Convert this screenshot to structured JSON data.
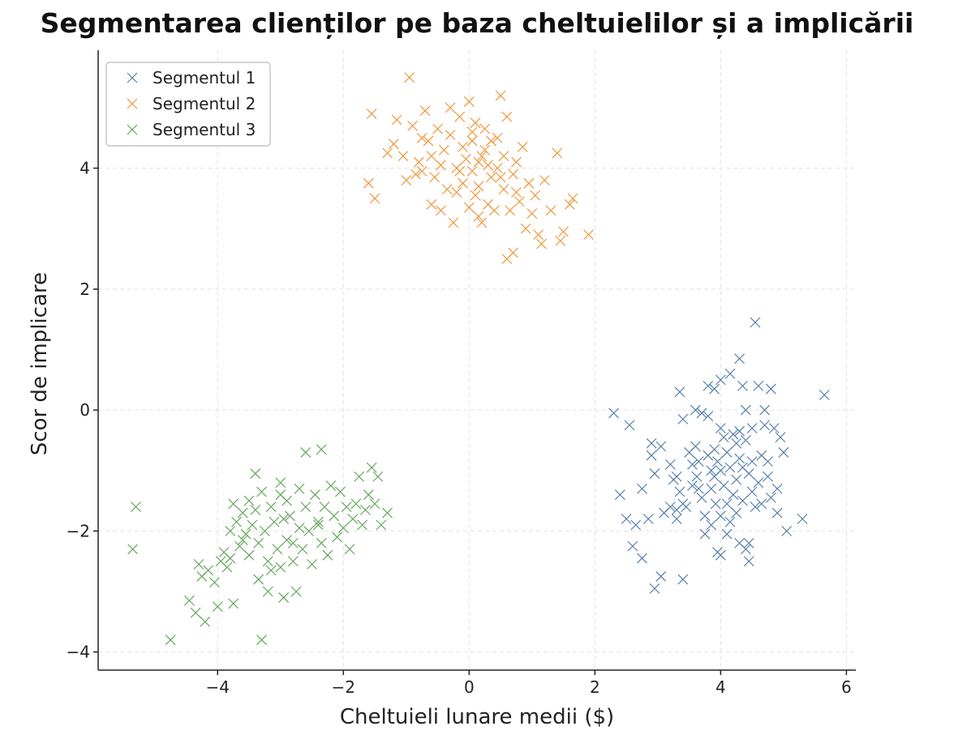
{
  "chart_data": {
    "type": "scatter",
    "title": "Segmentarea clienților pe baza cheltuielilor și a implicării",
    "xlabel": "Cheltuieli lunare medii ($)",
    "ylabel": "Scor de implicare",
    "xlim": [
      -5.9,
      6.15
    ],
    "ylim": [
      -4.3,
      5.95
    ],
    "xticks": [
      -4,
      -2,
      0,
      2,
      4,
      6
    ],
    "yticks": [
      -4,
      -2,
      0,
      2,
      4
    ],
    "xtick_labels": [
      "−4",
      "−2",
      "0",
      "2",
      "4",
      "6"
    ],
    "ytick_labels": [
      "−4",
      "−2",
      "0",
      "2",
      "4"
    ],
    "grid": true,
    "legend_position": "top-left",
    "marker": "x",
    "series": [
      {
        "name": "Segmentul 1",
        "color": "#4c78a8",
        "points": [
          [
            2.3,
            -0.05
          ],
          [
            2.55,
            -0.25
          ],
          [
            2.4,
            -1.4
          ],
          [
            2.5,
            -1.8
          ],
          [
            2.65,
            -1.9
          ],
          [
            2.6,
            -2.25
          ],
          [
            2.75,
            -2.45
          ],
          [
            2.75,
            -1.3
          ],
          [
            2.85,
            -1.8
          ],
          [
            2.9,
            -0.55
          ],
          [
            2.9,
            -0.75
          ],
          [
            2.95,
            -1.05
          ],
          [
            2.95,
            -2.95
          ],
          [
            3.05,
            -2.75
          ],
          [
            3.05,
            -0.6
          ],
          [
            3.1,
            -1.7
          ],
          [
            3.2,
            -0.9
          ],
          [
            3.2,
            -1.6
          ],
          [
            3.25,
            -1.15
          ],
          [
            3.3,
            -1.8
          ],
          [
            3.3,
            -1.65
          ],
          [
            3.3,
            -1.1
          ],
          [
            3.35,
            0.3
          ],
          [
            3.35,
            -1.35
          ],
          [
            3.4,
            -0.15
          ],
          [
            3.4,
            -1.55
          ],
          [
            3.4,
            -2.8
          ],
          [
            3.45,
            -1.6
          ],
          [
            3.5,
            -0.7
          ],
          [
            3.55,
            -0.9
          ],
          [
            3.55,
            -1.25
          ],
          [
            3.6,
            -0.0
          ],
          [
            3.6,
            -0.6
          ],
          [
            3.62,
            -1.1
          ],
          [
            3.65,
            -1.3
          ],
          [
            3.65,
            -0.85
          ],
          [
            3.7,
            -0.05
          ],
          [
            3.7,
            -1.45
          ],
          [
            3.75,
            -1.75
          ],
          [
            3.75,
            -2.05
          ],
          [
            3.8,
            -0.1
          ],
          [
            3.8,
            0.4
          ],
          [
            3.8,
            -0.75
          ],
          [
            3.85,
            -1.0
          ],
          [
            3.85,
            -1.9
          ],
          [
            3.85,
            -1.3
          ],
          [
            3.9,
            0.35
          ],
          [
            3.9,
            -0.65
          ],
          [
            3.9,
            -1.1
          ],
          [
            3.92,
            -1.55
          ],
          [
            3.95,
            -0.85
          ],
          [
            3.95,
            -2.35
          ],
          [
            4.0,
            0.5
          ],
          [
            4.0,
            -0.3
          ],
          [
            4.0,
            -1.0
          ],
          [
            4.0,
            -1.75
          ],
          [
            4.0,
            -2.4
          ],
          [
            4.05,
            -0.45
          ],
          [
            4.05,
            -1.25
          ],
          [
            4.1,
            -0.7
          ],
          [
            4.1,
            -1.55
          ],
          [
            4.1,
            -2.05
          ],
          [
            4.15,
            0.6
          ],
          [
            4.15,
            -0.95
          ],
          [
            4.15,
            -1.85
          ],
          [
            4.2,
            -0.4
          ],
          [
            4.2,
            -1.4
          ],
          [
            4.25,
            -0.55
          ],
          [
            4.25,
            -1.15
          ],
          [
            4.25,
            -1.7
          ],
          [
            4.3,
            0.85
          ],
          [
            4.3,
            -0.35
          ],
          [
            4.3,
            -0.8
          ],
          [
            4.3,
            -2.2
          ],
          [
            4.35,
            0.4
          ],
          [
            4.35,
            -0.95
          ],
          [
            4.35,
            -1.5
          ],
          [
            4.4,
            -0.0
          ],
          [
            4.4,
            -0.5
          ],
          [
            4.4,
            -2.3
          ],
          [
            4.45,
            -1.05
          ],
          [
            4.45,
            -2.2
          ],
          [
            4.45,
            -2.5
          ],
          [
            4.5,
            -0.3
          ],
          [
            4.5,
            -0.85
          ],
          [
            4.5,
            -1.35
          ],
          [
            4.55,
            1.45
          ],
          [
            4.55,
            -1.6
          ],
          [
            4.6,
            0.4
          ],
          [
            4.6,
            -1.2
          ],
          [
            4.65,
            -0.75
          ],
          [
            4.65,
            -1.55
          ],
          [
            4.7,
            0.0
          ],
          [
            4.7,
            -0.25
          ],
          [
            4.75,
            -0.85
          ],
          [
            4.75,
            -1.1
          ],
          [
            4.8,
            0.35
          ],
          [
            4.8,
            -1.45
          ],
          [
            4.85,
            -0.3
          ],
          [
            4.9,
            -1.3
          ],
          [
            4.9,
            -1.7
          ],
          [
            4.95,
            -0.45
          ],
          [
            5.0,
            -0.7
          ],
          [
            5.05,
            -2.0
          ],
          [
            5.3,
            -1.8
          ],
          [
            5.65,
            0.25
          ]
        ]
      },
      {
        "name": "Segmentul 2",
        "color": "#f28e2b",
        "points": [
          [
            -1.55,
            4.9
          ],
          [
            -1.6,
            3.75
          ],
          [
            -1.5,
            3.5
          ],
          [
            -1.3,
            4.25
          ],
          [
            -1.2,
            4.4
          ],
          [
            -1.15,
            4.8
          ],
          [
            -1.05,
            4.2
          ],
          [
            -1.0,
            3.8
          ],
          [
            -0.95,
            5.5
          ],
          [
            -0.9,
            4.7
          ],
          [
            -0.85,
            3.9
          ],
          [
            -0.8,
            4.1
          ],
          [
            -0.75,
            4.5
          ],
          [
            -0.7,
            4.95
          ],
          [
            -0.65,
            4.45
          ],
          [
            -0.6,
            4.2
          ],
          [
            -0.55,
            3.85
          ],
          [
            -0.5,
            4.65
          ],
          [
            -0.45,
            3.3
          ],
          [
            -0.45,
            4.05
          ],
          [
            -0.4,
            4.3
          ],
          [
            -0.35,
            3.65
          ],
          [
            -0.3,
            5.0
          ],
          [
            -0.3,
            4.55
          ],
          [
            -0.25,
            3.1
          ],
          [
            -0.2,
            4.0
          ],
          [
            -0.2,
            3.6
          ],
          [
            -0.15,
            4.85
          ],
          [
            -0.1,
            3.75
          ],
          [
            -0.1,
            4.35
          ],
          [
            -0.05,
            4.15
          ],
          [
            0.0,
            5.1
          ],
          [
            0.0,
            3.35
          ],
          [
            0.05,
            3.95
          ],
          [
            0.05,
            4.6
          ],
          [
            0.1,
            4.75
          ],
          [
            0.1,
            3.55
          ],
          [
            0.15,
            4.1
          ],
          [
            0.15,
            3.2
          ],
          [
            0.2,
            4.2
          ],
          [
            0.2,
            3.1
          ],
          [
            0.25,
            4.65
          ],
          [
            0.3,
            4.05
          ],
          [
            0.3,
            3.4
          ],
          [
            0.35,
            4.45
          ],
          [
            0.4,
            3.3
          ],
          [
            0.45,
            4.0
          ],
          [
            0.5,
            5.2
          ],
          [
            0.5,
            3.85
          ],
          [
            0.55,
            4.2
          ],
          [
            0.55,
            3.65
          ],
          [
            0.6,
            4.85
          ],
          [
            0.6,
            2.5
          ],
          [
            0.65,
            3.3
          ],
          [
            0.7,
            2.6
          ],
          [
            0.7,
            3.9
          ],
          [
            0.75,
            4.1
          ],
          [
            0.8,
            3.45
          ],
          [
            0.85,
            4.35
          ],
          [
            0.9,
            3.0
          ],
          [
            0.95,
            3.75
          ],
          [
            1.0,
            3.25
          ],
          [
            1.05,
            3.55
          ],
          [
            1.1,
            2.9
          ],
          [
            1.15,
            2.75
          ],
          [
            1.2,
            3.8
          ],
          [
            1.3,
            3.3
          ],
          [
            1.4,
            4.25
          ],
          [
            1.45,
            2.8
          ],
          [
            1.5,
            2.95
          ],
          [
            1.6,
            3.4
          ],
          [
            1.65,
            3.5
          ],
          [
            1.9,
            2.9
          ],
          [
            -0.6,
            3.4
          ],
          [
            -0.75,
            3.95
          ],
          [
            0.25,
            4.3
          ],
          [
            0.45,
            4.5
          ],
          [
            -0.15,
            3.95
          ],
          [
            0.05,
            4.45
          ],
          [
            0.35,
            3.85
          ],
          [
            0.75,
            3.6
          ],
          [
            0.15,
            3.7
          ]
        ]
      },
      {
        "name": "Segmentul 3",
        "color": "#59a14f",
        "points": [
          [
            -5.3,
            -1.6
          ],
          [
            -5.35,
            -2.3
          ],
          [
            -4.75,
            -3.8
          ],
          [
            -4.45,
            -3.15
          ],
          [
            -4.35,
            -3.35
          ],
          [
            -4.3,
            -2.55
          ],
          [
            -4.25,
            -2.75
          ],
          [
            -4.2,
            -3.5
          ],
          [
            -4.15,
            -2.65
          ],
          [
            -4.05,
            -2.85
          ],
          [
            -4.0,
            -3.25
          ],
          [
            -3.95,
            -2.5
          ],
          [
            -3.9,
            -2.35
          ],
          [
            -3.85,
            -2.6
          ],
          [
            -3.8,
            -2.0
          ],
          [
            -3.8,
            -2.45
          ],
          [
            -3.75,
            -1.55
          ],
          [
            -3.75,
            -3.2
          ],
          [
            -3.7,
            -1.85
          ],
          [
            -3.65,
            -2.25
          ],
          [
            -3.6,
            -1.7
          ],
          [
            -3.55,
            -2.05
          ],
          [
            -3.5,
            -1.5
          ],
          [
            -3.5,
            -2.4
          ],
          [
            -3.45,
            -1.9
          ],
          [
            -3.4,
            -1.05
          ],
          [
            -3.4,
            -1.65
          ],
          [
            -3.35,
            -2.2
          ],
          [
            -3.35,
            -2.8
          ],
          [
            -3.3,
            -3.8
          ],
          [
            -3.3,
            -1.35
          ],
          [
            -3.25,
            -2.0
          ],
          [
            -3.2,
            -2.5
          ],
          [
            -3.2,
            -3.0
          ],
          [
            -3.15,
            -1.6
          ],
          [
            -3.1,
            -1.85
          ],
          [
            -3.05,
            -2.3
          ],
          [
            -3.0,
            -1.2
          ],
          [
            -3.0,
            -2.6
          ],
          [
            -2.95,
            -3.1
          ],
          [
            -2.9,
            -1.5
          ],
          [
            -2.9,
            -2.15
          ],
          [
            -2.85,
            -1.75
          ],
          [
            -2.8,
            -2.5
          ],
          [
            -2.75,
            -3.0
          ],
          [
            -2.7,
            -1.3
          ],
          [
            -2.7,
            -1.95
          ],
          [
            -2.65,
            -2.3
          ],
          [
            -2.6,
            -0.7
          ],
          [
            -2.6,
            -1.6
          ],
          [
            -2.55,
            -2.0
          ],
          [
            -2.5,
            -2.55
          ],
          [
            -2.45,
            -1.4
          ],
          [
            -2.4,
            -1.85
          ],
          [
            -2.35,
            -0.65
          ],
          [
            -2.35,
            -2.2
          ],
          [
            -2.3,
            -1.6
          ],
          [
            -2.25,
            -2.4
          ],
          [
            -2.2,
            -1.25
          ],
          [
            -2.15,
            -1.75
          ],
          [
            -2.1,
            -2.1
          ],
          [
            -2.05,
            -1.35
          ],
          [
            -2.0,
            -1.95
          ],
          [
            -1.95,
            -1.6
          ],
          [
            -1.9,
            -2.3
          ],
          [
            -1.85,
            -1.8
          ],
          [
            -1.8,
            -1.55
          ],
          [
            -1.75,
            -1.1
          ],
          [
            -1.7,
            -1.9
          ],
          [
            -1.65,
            -1.65
          ],
          [
            -1.6,
            -1.4
          ],
          [
            -1.55,
            -0.95
          ],
          [
            -1.5,
            -1.55
          ],
          [
            -1.45,
            -1.1
          ],
          [
            -1.4,
            -1.9
          ],
          [
            -1.3,
            -1.7
          ],
          [
            -3.6,
            -2.15
          ],
          [
            -3.0,
            -1.4
          ],
          [
            -2.8,
            -2.2
          ],
          [
            -2.4,
            -1.9
          ],
          [
            -3.15,
            -2.65
          ],
          [
            -2.95,
            -1.8
          ]
        ]
      }
    ]
  }
}
